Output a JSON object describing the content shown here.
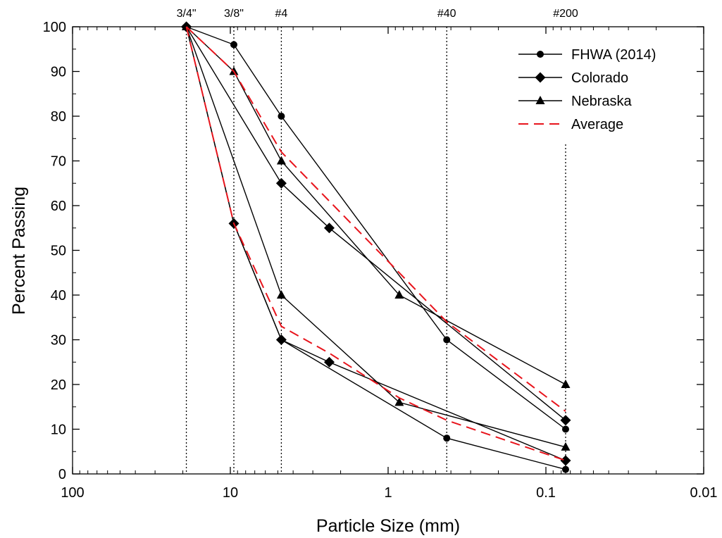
{
  "chart_data": {
    "type": "line",
    "xlabel": "Particle Size (mm)",
    "ylabel": "Percent Passing",
    "x_scale": "log",
    "x_reversed": true,
    "xlim": [
      100,
      0.01
    ],
    "ylim": [
      0,
      100
    ],
    "xticks": [
      {
        "value": 100,
        "label": "100"
      },
      {
        "value": 10,
        "label": "10"
      },
      {
        "value": 1,
        "label": "1"
      },
      {
        "value": 0.1,
        "label": "0.1"
      },
      {
        "value": 0.01,
        "label": "0.01"
      }
    ],
    "yticks": [
      0,
      10,
      20,
      30,
      40,
      50,
      60,
      70,
      80,
      90,
      100
    ],
    "sieves": [
      {
        "label": "3/4\"",
        "size": 19.0
      },
      {
        "label": "3/8\"",
        "size": 9.5
      },
      {
        "label": "#4",
        "size": 4.75
      },
      {
        "label": "#40",
        "size": 0.425
      },
      {
        "label": "#200",
        "size": 0.075
      }
    ],
    "series": [
      {
        "name": "FHWA (2014)",
        "marker": "circle",
        "color": "#000000",
        "dash": "solid",
        "bands": [
          {
            "x": [
              19.0,
              9.5,
              4.75,
              0.425,
              0.075
            ],
            "y": [
              100,
              96,
              80,
              30,
              10
            ]
          },
          {
            "x": [
              19.0,
              9.5,
              4.75,
              0.425,
              0.075
            ],
            "y": [
              100,
              56,
              30,
              8,
              1
            ]
          }
        ]
      },
      {
        "name": "Colorado",
        "marker": "diamond",
        "color": "#000000",
        "dash": "solid",
        "bands": [
          {
            "x": [
              19.0,
              4.75,
              2.36,
              0.075
            ],
            "y": [
              100,
              65,
              55,
              12
            ]
          },
          {
            "x": [
              19.0,
              9.5,
              4.75,
              2.36,
              0.075
            ],
            "y": [
              100,
              56,
              30,
              25,
              3
            ]
          }
        ]
      },
      {
        "name": "Nebraska",
        "marker": "triangle",
        "color": "#000000",
        "dash": "solid",
        "bands": [
          {
            "x": [
              19.0,
              9.5,
              4.75,
              0.85,
              0.075
            ],
            "y": [
              100,
              90,
              70,
              40,
              20
            ]
          },
          {
            "x": [
              19.0,
              4.75,
              0.85,
              0.075
            ],
            "y": [
              100,
              40,
              16,
              6
            ]
          }
        ]
      },
      {
        "name": "Average",
        "marker": "none",
        "color": "#e8141c",
        "dash": "dashed",
        "bands": [
          {
            "x": [
              19.0,
              9.5,
              4.75,
              0.85,
              0.425,
              0.075
            ],
            "y": [
              100,
              90,
              72,
              45,
              34,
              14
            ]
          },
          {
            "x": [
              19.0,
              9.5,
              4.75,
              2.36,
              0.85,
              0.425,
              0.075
            ],
            "y": [
              100,
              56,
              33,
              27,
              17,
              12,
              3
            ]
          }
        ]
      }
    ],
    "legend": {
      "position": "top-right",
      "entries": [
        "FHWA (2014)",
        "Colorado",
        "Nebraska",
        "Average"
      ]
    },
    "grid": false
  }
}
